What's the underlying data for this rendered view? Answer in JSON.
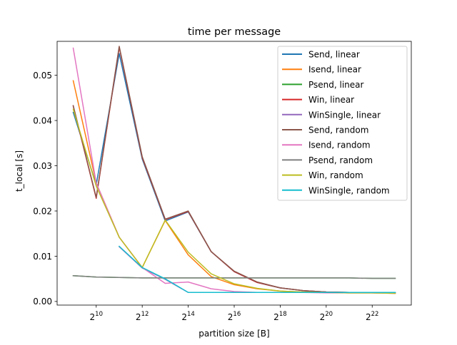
{
  "chart_data": {
    "type": "line",
    "title": "time per message",
    "xlabel": "partition size [B]",
    "ylabel": "t_local [s]",
    "x_scale": "log2",
    "xlim": [
      8.3,
      23.7
    ],
    "ylim": [
      -0.0008,
      0.0575
    ],
    "x_ticks": [
      {
        "exp": 10,
        "base": "2",
        "sup": "10"
      },
      {
        "exp": 12,
        "base": "2",
        "sup": "12"
      },
      {
        "exp": 14,
        "base": "2",
        "sup": "14"
      },
      {
        "exp": 16,
        "base": "2",
        "sup": "16"
      },
      {
        "exp": 18,
        "base": "2",
        "sup": "18"
      },
      {
        "exp": 20,
        "base": "2",
        "sup": "20"
      },
      {
        "exp": 22,
        "base": "2",
        "sup": "22"
      }
    ],
    "y_ticks": [
      {
        "value": 0.0,
        "label": "0.00"
      },
      {
        "value": 0.01,
        "label": "0.01"
      },
      {
        "value": 0.02,
        "label": "0.02"
      },
      {
        "value": 0.03,
        "label": "0.03"
      },
      {
        "value": 0.04,
        "label": "0.04"
      },
      {
        "value": 0.05,
        "label": "0.05"
      }
    ],
    "grid": false,
    "legend_position": "top-right",
    "x": [
      512,
      1024,
      2048,
      4096,
      8192,
      16384,
      32768,
      65536,
      131072,
      262144,
      524288,
      1048576,
      2097152,
      4194304,
      8388608
    ],
    "series": [
      {
        "name": "Send, linear",
        "color": "#1f77b4",
        "values": [
          0.0418,
          0.0258,
          0.0548,
          0.0315,
          0.0178,
          0.0198,
          0.011,
          0.0066,
          0.0042,
          0.003,
          0.0024,
          0.0021,
          0.002,
          0.002,
          0.0019
        ]
      },
      {
        "name": "Isend, linear",
        "color": "#ff7f0e",
        "values": [
          0.0488,
          0.0262,
          0.0142,
          0.0075,
          0.0179,
          0.0103,
          0.0055,
          0.0037,
          0.0028,
          0.0023,
          0.0021,
          0.002,
          0.0019,
          0.0019,
          0.0018
        ]
      },
      {
        "name": "Psend, linear",
        "color": "#2ca02c",
        "values": [
          0.0057,
          0.0054,
          0.0053,
          0.0052,
          0.0052,
          0.0052,
          0.0052,
          0.0052,
          0.0052,
          0.0052,
          0.0052,
          0.0052,
          0.0052,
          0.0051,
          0.0051
        ]
      },
      {
        "name": "Win, linear",
        "color": "#d62728",
        "values": [
          0.0432,
          0.0228,
          0.0562,
          0.0318,
          0.0181,
          0.0199,
          0.011,
          0.0066,
          0.0042,
          0.003,
          0.0024,
          0.0021,
          0.002,
          0.002,
          0.0019
        ]
      },
      {
        "name": "WinSingle, linear",
        "color": "#9467bd",
        "values": [
          null,
          null,
          0.0121,
          0.0074,
          0.0049,
          0.002,
          0.002,
          0.002,
          0.002,
          0.002,
          0.002,
          0.002,
          0.002,
          0.002,
          0.002
        ]
      },
      {
        "name": "Send, random",
        "color": "#8c564b",
        "values": [
          0.0433,
          0.023,
          0.0564,
          0.032,
          0.0182,
          0.02,
          0.011,
          0.0067,
          0.0043,
          0.003,
          0.0024,
          0.0021,
          0.002,
          0.002,
          0.0019
        ]
      },
      {
        "name": "Isend, random",
        "color": "#e377c2",
        "values": [
          0.056,
          0.0262,
          0.0142,
          0.0075,
          0.004,
          0.0043,
          0.0028,
          0.0022,
          0.002,
          0.002,
          0.002,
          0.0019,
          0.0019,
          0.0019,
          0.0018
        ]
      },
      {
        "name": "Psend, random",
        "color": "#7f7f7f",
        "values": [
          0.0057,
          0.0054,
          0.0053,
          0.0052,
          0.0052,
          0.0052,
          0.0052,
          0.0052,
          0.0052,
          0.0052,
          0.0052,
          0.0052,
          0.0052,
          0.0051,
          0.0051
        ]
      },
      {
        "name": "Win, random",
        "color": "#bcbd22",
        "values": [
          0.0425,
          0.0255,
          0.0142,
          0.0075,
          0.018,
          0.0109,
          0.0061,
          0.0039,
          0.0029,
          0.0023,
          0.0021,
          0.002,
          0.0019,
          0.0019,
          0.0018
        ]
      },
      {
        "name": "WinSingle, random",
        "color": "#17becf",
        "values": [
          null,
          null,
          0.0122,
          0.0075,
          0.005,
          0.002,
          0.002,
          0.002,
          0.002,
          0.002,
          0.002,
          0.002,
          0.002,
          0.002,
          0.002
        ]
      }
    ]
  }
}
